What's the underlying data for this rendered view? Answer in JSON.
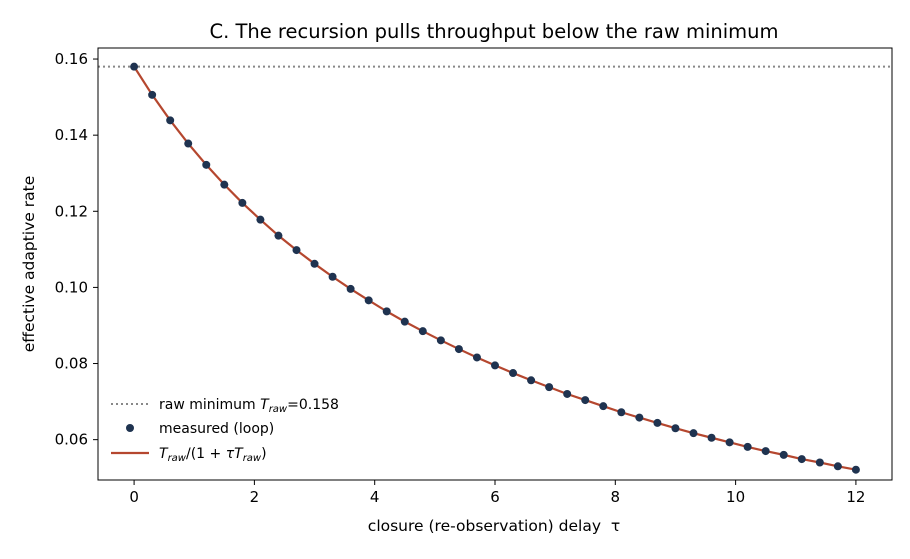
{
  "chart_data": {
    "type": "line",
    "title": "C. The recursion pulls throughput below the raw minimum",
    "xlabel": "closure (re-observation) delay  τ",
    "ylabel": "effective adaptive rate",
    "xlim": [
      -0.6,
      12.6
    ],
    "ylim": [
      0.0494,
      0.1629
    ],
    "x_ticks": [
      0,
      2,
      4,
      6,
      8,
      10,
      12
    ],
    "x_tick_labels": [
      "0",
      "2",
      "4",
      "6",
      "8",
      "10",
      "12"
    ],
    "y_ticks": [
      0.06,
      0.08,
      0.1,
      0.12,
      0.14,
      0.16
    ],
    "y_tick_labels": [
      "0.06",
      "0.08",
      "0.10",
      "0.12",
      "0.14",
      "0.16"
    ],
    "grid": false,
    "legend_position": "lower-left",
    "t_raw": 0.158,
    "x": [
      0.0,
      0.3,
      0.6,
      0.9,
      1.2,
      1.5,
      1.8,
      2.1,
      2.4,
      2.7,
      3.0,
      3.3,
      3.6,
      3.9,
      4.2,
      4.5,
      4.8,
      5.1,
      5.4,
      5.7,
      6.0,
      6.3,
      6.6,
      6.9,
      7.2,
      7.5,
      7.8,
      8.1,
      8.4,
      8.7,
      9.0,
      9.3,
      9.6,
      9.9,
      10.2,
      10.5,
      10.8,
      11.1,
      11.4,
      11.7,
      12.0
    ],
    "series": [
      {
        "name": "raw minimum T_raw=0.158",
        "kind": "hline",
        "value": 0.158,
        "color": "#888888"
      },
      {
        "name": "measured (loop)",
        "kind": "scatter",
        "color": "#1f3350",
        "values": [
          0.158,
          0.1506,
          0.1439,
          0.1378,
          0.1322,
          0.127,
          0.1222,
          0.1178,
          0.1136,
          0.1098,
          0.1062,
          0.1028,
          0.0996,
          0.0966,
          0.0937,
          0.091,
          0.0885,
          0.0861,
          0.0838,
          0.0816,
          0.0795,
          0.0775,
          0.0756,
          0.0738,
          0.072,
          0.0704,
          0.0688,
          0.0672,
          0.0658,
          0.0644,
          0.063,
          0.0617,
          0.0605,
          0.0593,
          0.0581,
          0.057,
          0.056,
          0.0549,
          0.054,
          0.053,
          0.0521
        ]
      },
      {
        "name": "T_raw/(1 + τT_raw)",
        "kind": "line",
        "color": "#b5472f",
        "values": [
          0.158,
          0.1506,
          0.1439,
          0.1378,
          0.1322,
          0.127,
          0.1222,
          0.1178,
          0.1136,
          0.1098,
          0.1062,
          0.1028,
          0.0996,
          0.0966,
          0.0937,
          0.091,
          0.0885,
          0.0861,
          0.0838,
          0.0816,
          0.0795,
          0.0775,
          0.0756,
          0.0738,
          0.072,
          0.0704,
          0.0688,
          0.0672,
          0.0658,
          0.0644,
          0.063,
          0.0617,
          0.0605,
          0.0593,
          0.0581,
          0.057,
          0.056,
          0.0549,
          0.054,
          0.053,
          0.0521
        ]
      }
    ],
    "legend": [
      {
        "label_prefix": "raw minimum ",
        "label_math": "T",
        "label_sub": "raw",
        "label_suffix": "=0.158"
      },
      {
        "label": "measured (loop)"
      },
      {
        "label": "T_raw/(1 + τT_raw)"
      }
    ]
  }
}
